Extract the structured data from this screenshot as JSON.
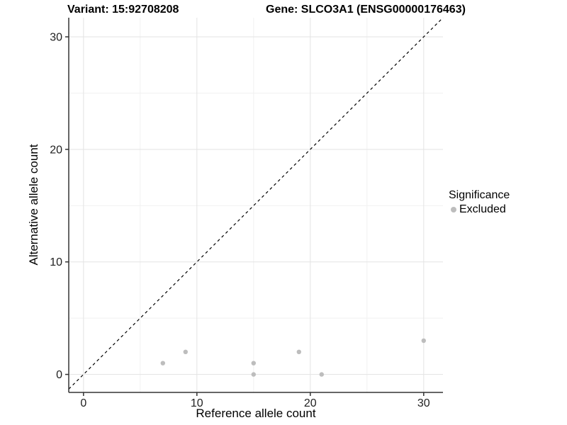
{
  "chart_data": {
    "type": "scatter",
    "title_left": "Variant: 15:92708208",
    "title_right": "Gene: SLCO3A1 (ENSG00000176463)",
    "xlabel": "Reference allele count",
    "ylabel": "Alternative allele count",
    "xlim": [
      -1.3,
      31.7
    ],
    "ylim": [
      -1.6,
      31.7
    ],
    "x_ticks": [
      0,
      10,
      20,
      30
    ],
    "y_ticks": [
      0,
      10,
      20,
      30
    ],
    "x_minor_ticks": [
      5,
      15,
      25
    ],
    "y_minor_ticks": [
      5,
      15,
      25
    ],
    "grid": true,
    "identity_line": {
      "equation": "y = x",
      "style": "dashed",
      "color": "#000000"
    },
    "series": [
      {
        "name": "Excluded",
        "color": "#bdbdbd",
        "points": [
          [
            7,
            1
          ],
          [
            9,
            2
          ],
          [
            15,
            0
          ],
          [
            15,
            1
          ],
          [
            19,
            2
          ],
          [
            21,
            0
          ],
          [
            30,
            3
          ]
        ]
      }
    ],
    "legend": {
      "title": "Significance",
      "position": "right",
      "entries": [
        {
          "label": "Excluded",
          "color": "#bdbdbd"
        }
      ]
    }
  },
  "colors": {
    "background": "#ffffff",
    "grid_major": "#e3e3e3",
    "grid_minor": "#f1f1f1",
    "axis_line": "#333333",
    "tick_label": "#1f1f1f",
    "point": "#bdbdbd"
  }
}
